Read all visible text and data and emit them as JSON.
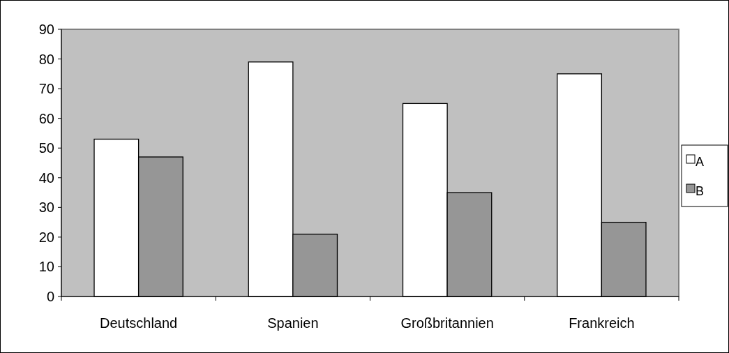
{
  "chart_data": {
    "type": "bar",
    "categories": [
      "Deutschland",
      "Spanien",
      "Großbritannien",
      "Frankreich"
    ],
    "series": [
      {
        "name": "A",
        "color": "#ffffff",
        "values": [
          53,
          79,
          65,
          75
        ]
      },
      {
        "name": "B",
        "color": "#969696",
        "values": [
          47,
          21,
          35,
          25
        ]
      }
    ],
    "ylim": [
      0,
      90
    ],
    "yticks": [
      0,
      10,
      20,
      30,
      40,
      50,
      60,
      70,
      80,
      90
    ],
    "grid": false,
    "legend": "right"
  }
}
